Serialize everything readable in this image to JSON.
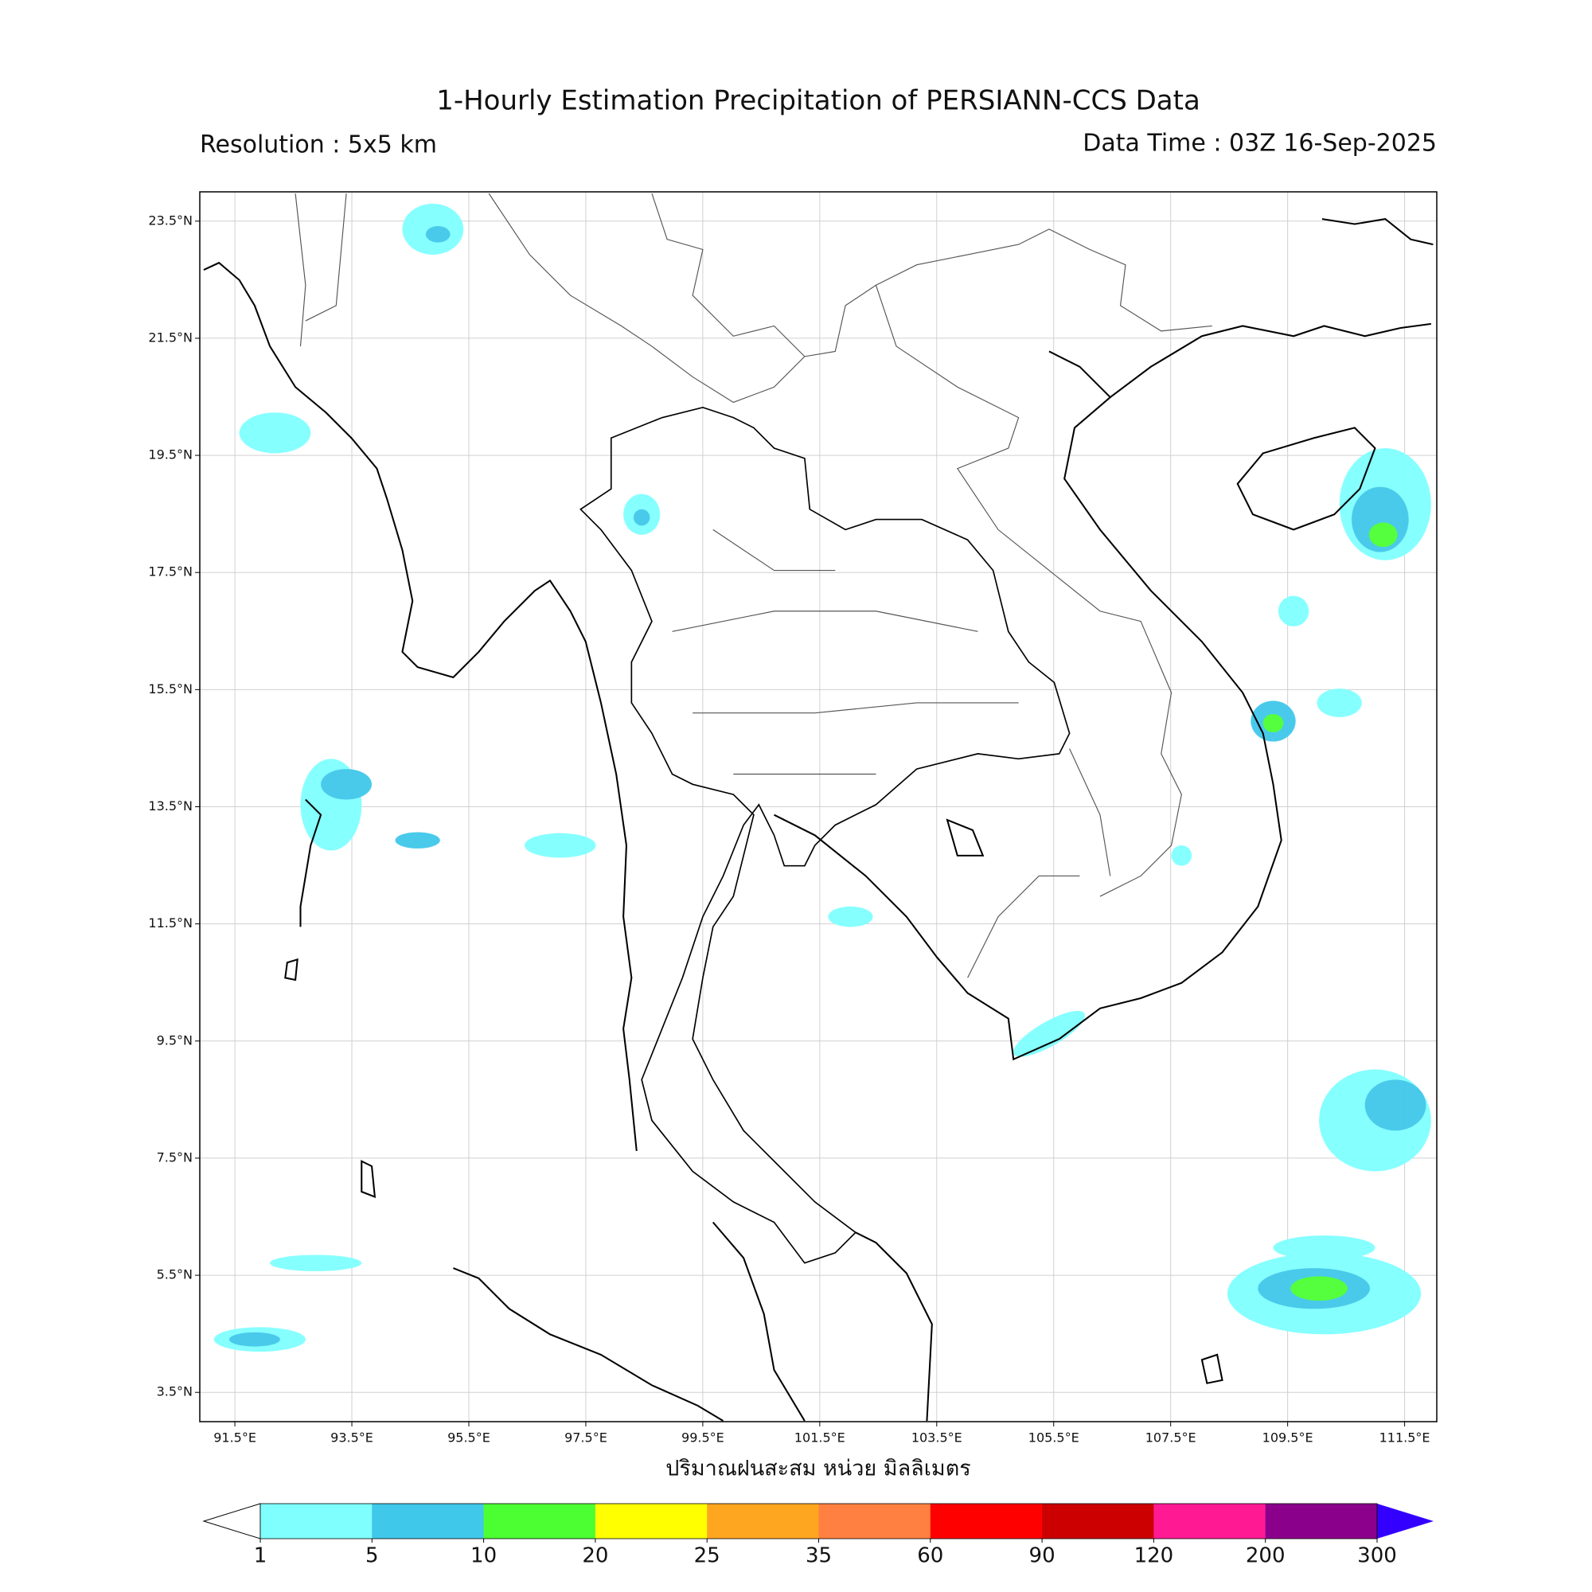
{
  "title": "1-Hourly Estimation Precipitation of PERSIANN-CCS Data",
  "resolution": "Resolution : 5x5 km",
  "data_time": "Data Time : 03Z 16-Sep-2025",
  "xlabel": "ปริมาณฝนสะสม หน่วย มิลลิเมตร",
  "xlim": [
    90.9,
    112.05
  ],
  "ylim": [
    3.0,
    24.0
  ],
  "xticks": [
    {
      "value": 91.5,
      "label": "91.5°E"
    },
    {
      "value": 93.5,
      "label": "93.5°E"
    },
    {
      "value": 95.5,
      "label": "95.5°E"
    },
    {
      "value": 97.5,
      "label": "97.5°E"
    },
    {
      "value": 99.5,
      "label": "99.5°E"
    },
    {
      "value": 101.5,
      "label": "101.5°E"
    },
    {
      "value": 103.5,
      "label": "103.5°E"
    },
    {
      "value": 105.5,
      "label": "105.5°E"
    },
    {
      "value": 107.5,
      "label": "107.5°E"
    },
    {
      "value": 109.5,
      "label": "109.5°E"
    },
    {
      "value": 111.5,
      "label": "111.5°E"
    }
  ],
  "yticks": [
    {
      "value": 3.5,
      "label": "3.5°N"
    },
    {
      "value": 5.5,
      "label": "5.5°N"
    },
    {
      "value": 7.5,
      "label": "7.5°N"
    },
    {
      "value": 9.5,
      "label": "9.5°N"
    },
    {
      "value": 11.5,
      "label": "11.5°N"
    },
    {
      "value": 13.5,
      "label": "13.5°N"
    },
    {
      "value": 15.5,
      "label": "15.5°N"
    },
    {
      "value": 17.5,
      "label": "17.5°N"
    },
    {
      "value": 19.5,
      "label": "19.5°N"
    },
    {
      "value": 21.5,
      "label": "21.5°N"
    },
    {
      "value": 23.5,
      "label": "23.5°N"
    }
  ],
  "grid": true,
  "colorbar": {
    "levels": [
      1,
      5,
      10,
      20,
      25,
      35,
      60,
      90,
      120,
      200,
      300
    ],
    "colors": [
      "#80ffff",
      "#40c8ea",
      "#4cff33",
      "#ffff00",
      "#ffa620",
      "#ff8040",
      "#ff0000",
      "#cc0000",
      "#ff1a94",
      "#8b008b"
    ],
    "under_color": "#ffffff",
    "over_color": "#3300ff"
  }
}
